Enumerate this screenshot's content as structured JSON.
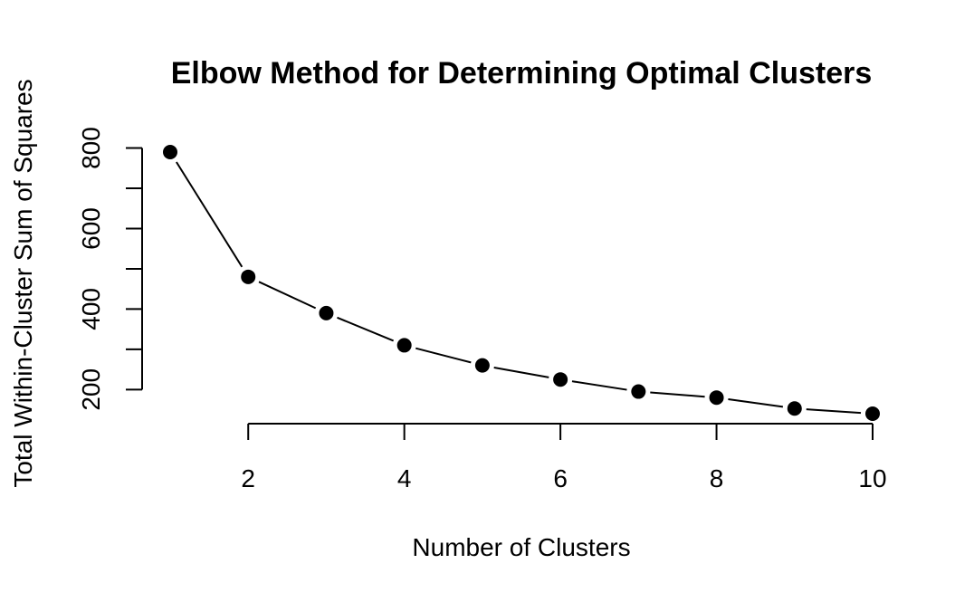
{
  "chart_data": {
    "type": "line",
    "title": "Elbow Method for Determining Optimal Clusters",
    "xlabel": "Number of Clusters",
    "ylabel": "Total Within-Cluster Sum of Squares",
    "x": [
      1,
      2,
      3,
      4,
      5,
      6,
      7,
      8,
      9,
      10
    ],
    "y": [
      790,
      480,
      390,
      310,
      260,
      225,
      195,
      180,
      153,
      140
    ],
    "xlim": [
      0.5,
      10.5
    ],
    "ylim": [
      100,
      850
    ],
    "xticks": [
      2,
      4,
      6,
      8,
      10
    ],
    "xtick_labels": [
      "2",
      "4",
      "6",
      "8",
      "10"
    ],
    "yticks": [
      200,
      300,
      400,
      500,
      600,
      700,
      800
    ],
    "ytick_labeled": [
      200,
      400,
      600,
      800
    ],
    "ytick_labels": [
      "200",
      "400",
      "600",
      "800"
    ],
    "xaxis_range": [
      2,
      10
    ],
    "yaxis_range": [
      200,
      800
    ],
    "grid": false,
    "legend": "none",
    "marker": "filled-circle",
    "line_color": "#000000",
    "marker_color": "#000000"
  }
}
